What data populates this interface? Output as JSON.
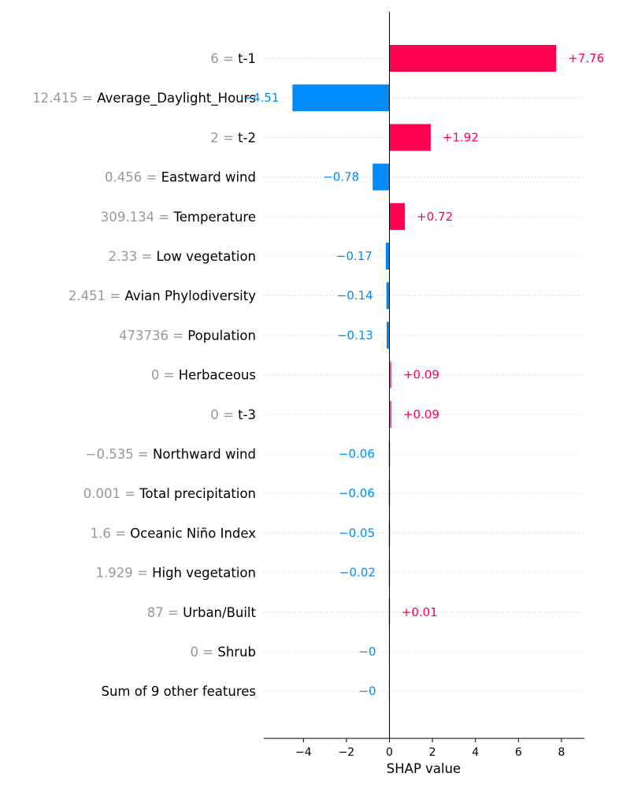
{
  "chart_data": {
    "type": "bar",
    "orientation": "horizontal",
    "xlabel": "SHAP value",
    "xlim": [
      -5.8,
      9.0
    ],
    "xticks": [
      -4,
      -2,
      0,
      2,
      4,
      6,
      8
    ],
    "xtick_labels": [
      "−4",
      "−2",
      "0",
      "2",
      "4",
      "6",
      "8"
    ],
    "grid": "horizontal dotted row guides",
    "colors": {
      "positive": "#ff0051",
      "negative": "#008bfb"
    },
    "rows": [
      {
        "feature": "t-1",
        "feature_value": "6",
        "shap": 7.76,
        "label": "+7.76"
      },
      {
        "feature": "Average_Daylight_Hours",
        "feature_value": "12.415",
        "shap": -4.51,
        "label": "−4.51"
      },
      {
        "feature": "t-2",
        "feature_value": "2",
        "shap": 1.92,
        "label": "+1.92"
      },
      {
        "feature": "Eastward wind",
        "feature_value": "0.456",
        "shap": -0.78,
        "label": "−0.78"
      },
      {
        "feature": "Temperature",
        "feature_value": "309.134",
        "shap": 0.72,
        "label": "+0.72"
      },
      {
        "feature": "Low vegetation",
        "feature_value": "2.33",
        "shap": -0.17,
        "label": "−0.17"
      },
      {
        "feature": "Avian Phylodiversity",
        "feature_value": "2.451",
        "shap": -0.14,
        "label": "−0.14"
      },
      {
        "feature": "Population",
        "feature_value": "473736",
        "shap": -0.13,
        "label": "−0.13"
      },
      {
        "feature": "Herbaceous",
        "feature_value": "0",
        "shap": 0.09,
        "label": "+0.09"
      },
      {
        "feature": "t-3",
        "feature_value": "0",
        "shap": 0.09,
        "label": "+0.09"
      },
      {
        "feature": "Northward wind",
        "feature_value": "−0.535",
        "shap": -0.06,
        "label": "−0.06"
      },
      {
        "feature": "Total precipitation",
        "feature_value": "0.001",
        "shap": -0.06,
        "label": "−0.06"
      },
      {
        "feature": "Oceanic Niño Index",
        "feature_value": "1.6",
        "shap": -0.05,
        "label": "−0.05"
      },
      {
        "feature": "High vegetation",
        "feature_value": "1.929",
        "shap": -0.02,
        "label": "−0.02"
      },
      {
        "feature": "Urban/Built",
        "feature_value": "87",
        "shap": 0.01,
        "label": "+0.01"
      },
      {
        "feature": "Shrub",
        "feature_value": "0",
        "shap": 0.0,
        "label": "−0"
      },
      {
        "feature": "Sum of 9 other features",
        "feature_value": "",
        "shap": 0.0,
        "label": "−0"
      }
    ]
  }
}
